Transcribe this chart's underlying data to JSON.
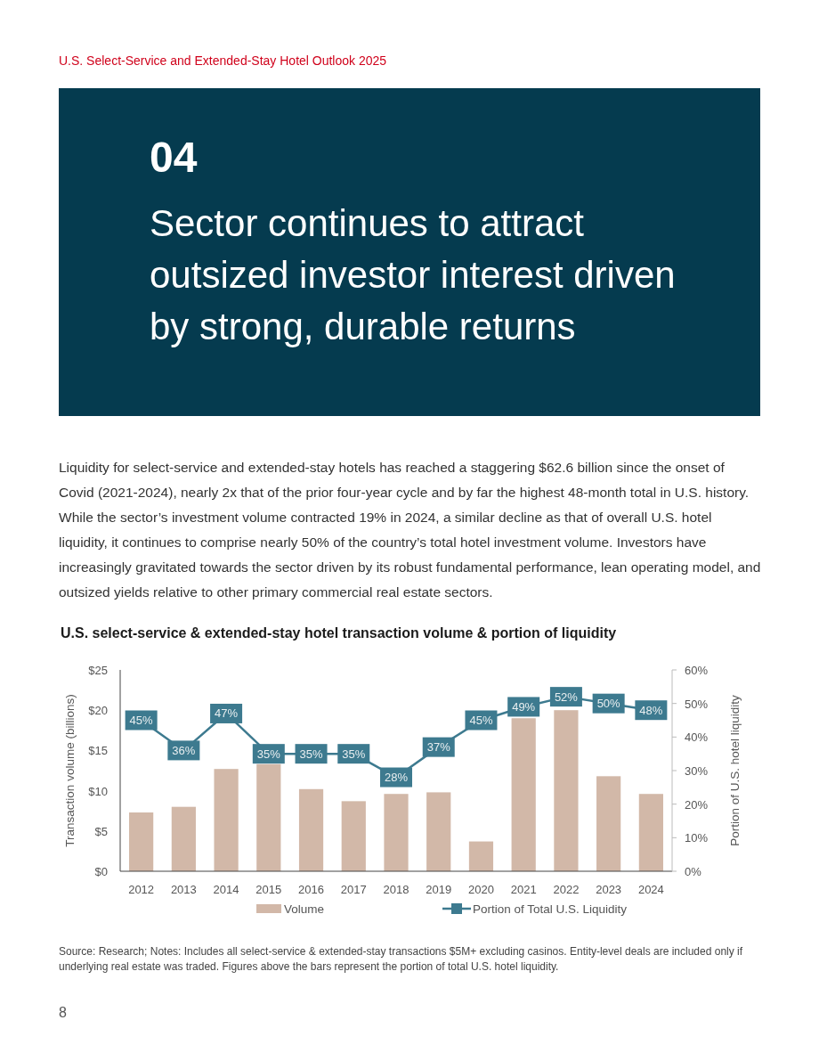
{
  "chart_data": {
    "type": "bar",
    "title": "U.S. select-service & extended-stay hotel transaction volume & portion of liquidity",
    "annotations": [
      "U.S. Select-Service and Extended-Stay Hotel Outlook 2025",
      "04",
      "Sector continues to attract outsized investor interest driven by strong, durable returns",
      "Liquidity for select-service and extended-stay hotels has reached a staggering $62.6 billion since the onset of Covid (2021-2024), nearly 2x that of the prior four-year cycle and by far the highest 48-month total in U.S. history.  While the sector’s investment volume contracted 19% in 2024, a similar decline as that of overall U.S. hotel liquidity, it continues to comprise nearly 50% of the country’s total hotel investment volume. Investors have increasingly gravitated towards the sector driven by its robust fundamental performance, lean operating model, and outsized yields relative to other primary commercial real estate sectors.",
      "Source: Research; Notes: Includes all select-service & extended-stay transactions $5M+ excluding casinos. Entity-level deals are included only if underlying real estate was traded. Figures above the bars represent the portion of total U.S. hotel liquidity.",
      "8"
    ],
    "categories": [
      "2012",
      "2013",
      "2014",
      "2015",
      "2016",
      "2017",
      "2018",
      "2019",
      "2020",
      "2021",
      "2022",
      "2023",
      "2024"
    ],
    "series": [
      {
        "name": "Volume",
        "color": "#d2b8a8",
        "values": [
          7.3,
          8,
          12.7,
          13.3,
          10.2,
          8.7,
          9.6,
          9.8,
          3.7,
          19,
          20,
          11.8,
          9.6
        ]
      },
      {
        "name": "Portion of Total U.S. Liquidity",
        "type": "line",
        "axis": "y2",
        "color": "#3d7a8f",
        "marker": "square",
        "values": [
          45,
          36,
          47,
          35,
          35,
          35,
          28,
          37,
          45,
          49,
          52,
          50,
          48
        ],
        "value_labels": [
          "45%",
          "36%",
          "47%",
          "35%",
          "35%",
          "35%",
          "28%",
          "37%",
          "45%",
          "49%",
          "52%",
          "50%",
          "48%"
        ]
      }
    ],
    "ylabel": "Transaction volume (billions)",
    "y2label": "Portion of U.S. hotel liquidity",
    "ylim": [
      0,
      25
    ],
    "yticks": [
      {
        "value": 0,
        "label": "$0"
      },
      {
        "value": 5,
        "label": "$5"
      },
      {
        "value": 10,
        "label": "$10"
      },
      {
        "value": 15,
        "label": "$15"
      },
      {
        "value": 20,
        "label": "$20"
      },
      {
        "value": 25,
        "label": "$25"
      }
    ],
    "y2lim": [
      0,
      60
    ],
    "y2ticks": [
      {
        "value": 0,
        "label": "0%"
      },
      {
        "value": 10,
        "label": "10%"
      },
      {
        "value": 20,
        "label": "20%"
      },
      {
        "value": 30,
        "label": "30%"
      },
      {
        "value": 40,
        "label": "40%"
      },
      {
        "value": 50,
        "label": "50%"
      },
      {
        "value": 60,
        "label": "60%"
      }
    ],
    "grid": false,
    "legend": "bottom"
  }
}
